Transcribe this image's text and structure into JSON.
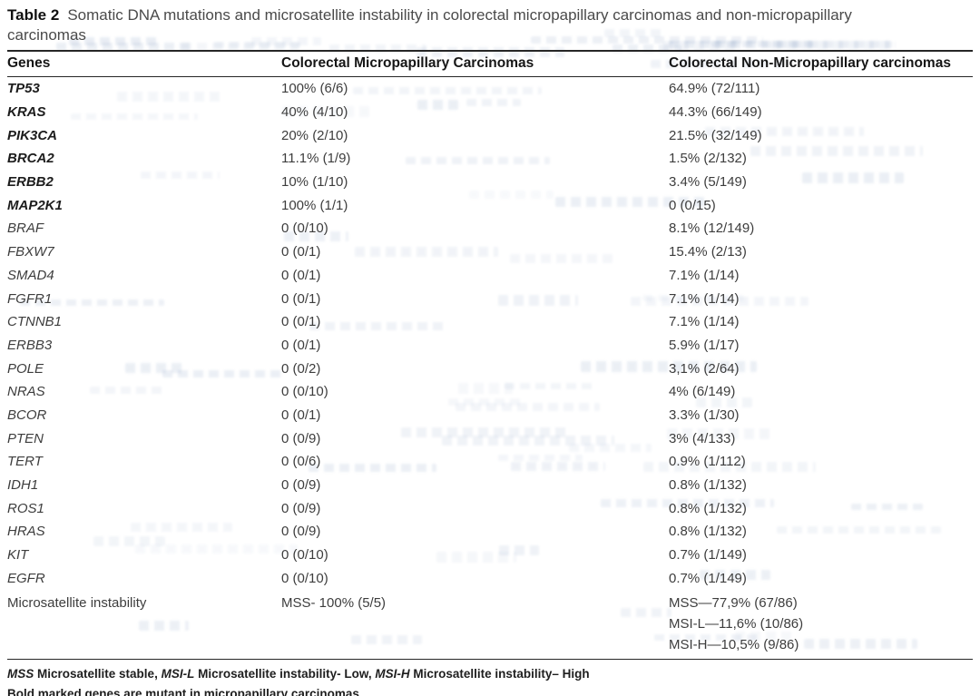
{
  "table": {
    "label": "Table 2",
    "title": "Somatic DNA mutations and microsatellite instability in colorectal micropapillary carcinomas and non-micropapillary carcinomas",
    "columns": [
      "Genes",
      "Colorectal Micropapillary Carcinomas",
      "Colorectal Non-Micropapillary carcinomas"
    ],
    "rows": [
      {
        "gene": "TP53",
        "bold": true,
        "mpc": "100% (6/6)",
        "nmpc": "64.9% (72/111)"
      },
      {
        "gene": "KRAS",
        "bold": true,
        "mpc": "40% (4/10)",
        "nmpc": "44.3% (66/149)"
      },
      {
        "gene": "PIK3CA",
        "bold": true,
        "mpc": "20% (2/10)",
        "nmpc": "21.5% (32/149)"
      },
      {
        "gene": "BRCA2",
        "bold": true,
        "mpc": "11.1% (1/9)",
        "nmpc": "1.5% (2/132)"
      },
      {
        "gene": "ERBB2",
        "bold": true,
        "mpc": "10% (1/10)",
        "nmpc": "3.4% (5/149)"
      },
      {
        "gene": "MAP2K1",
        "bold": true,
        "mpc": "100% (1/1)",
        "nmpc": "0 (0/15)"
      },
      {
        "gene": "BRAF",
        "bold": false,
        "mpc": "0 (0/10)",
        "nmpc": "8.1% (12/149)"
      },
      {
        "gene": "FBXW7",
        "bold": false,
        "mpc": "0 (0/1)",
        "nmpc": "15.4% (2/13)"
      },
      {
        "gene": "SMAD4",
        "bold": false,
        "mpc": "0 (0/1)",
        "nmpc": "7.1% (1/14)"
      },
      {
        "gene": "FGFR1",
        "bold": false,
        "mpc": "0 (0/1)",
        "nmpc": "7.1% (1/14)"
      },
      {
        "gene": "CTNNB1",
        "bold": false,
        "mpc": "0 (0/1)",
        "nmpc": "7.1% (1/14)"
      },
      {
        "gene": "ERBB3",
        "bold": false,
        "mpc": "0 (0/1)",
        "nmpc": "5.9% (1/17)"
      },
      {
        "gene": "POLE",
        "bold": false,
        "mpc": "0 (0/2)",
        "nmpc": "3,1% (2/64)"
      },
      {
        "gene": "NRAS",
        "bold": false,
        "mpc": "0 (0/10)",
        "nmpc": "4% (6/149)"
      },
      {
        "gene": "BCOR",
        "bold": false,
        "mpc": "0 (0/1)",
        "nmpc": "3.3% (1/30)"
      },
      {
        "gene": "PTEN",
        "bold": false,
        "mpc": "0 (0/9)",
        "nmpc": "3% (4/133)"
      },
      {
        "gene": "TERT",
        "bold": false,
        "mpc": "0 (0/6)",
        "nmpc": "0.9% (1/112)"
      },
      {
        "gene": "IDH1",
        "bold": false,
        "mpc": "0 (0/9)",
        "nmpc": "0.8% (1/132)"
      },
      {
        "gene": "ROS1",
        "bold": false,
        "mpc": "0 (0/9)",
        "nmpc": "0.8% (1/132)"
      },
      {
        "gene": "HRAS",
        "bold": false,
        "mpc": "0 (0/9)",
        "nmpc": "0.8% (1/132)"
      },
      {
        "gene": "KIT",
        "bold": false,
        "mpc": "0 (0/10)",
        "nmpc": "0.7% (1/149)"
      },
      {
        "gene": "EGFR",
        "bold": false,
        "mpc": "0 (0/10)",
        "nmpc": "0.7% (1/149)"
      }
    ],
    "msi_row": {
      "label": "Microsatellite instability",
      "mpc": "MSS- 100% (5/5)",
      "nmpc_lines": [
        "MSS—77,9% (67/86)",
        "MSI-L—11,6% (10/86)",
        "MSI-H—10,5% (9/86)"
      ]
    },
    "footnotes": {
      "line1_segments": [
        {
          "text": "MSS",
          "italic": true
        },
        {
          "text": " Microsatellite stable, ",
          "italic": false
        },
        {
          "text": "MSI-L",
          "italic": true
        },
        {
          "text": " Microsatellite instability- Low, ",
          "italic": false
        },
        {
          "text": "MSI-H",
          "italic": true
        },
        {
          "text": " Microsatellite instability– High",
          "italic": false
        }
      ],
      "line2": "Bold marked genes are mutant in micropapillary carcinomas"
    }
  }
}
